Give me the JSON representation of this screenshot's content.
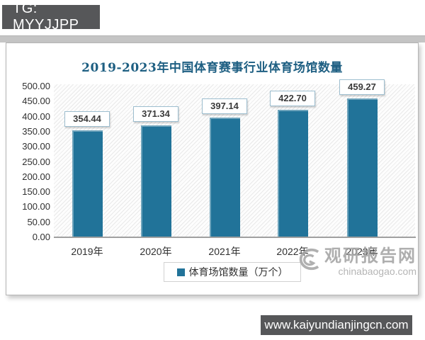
{
  "overlay": {
    "tg_label": "TG: MYYJJPP",
    "url_label": "www.kaiyundianjingcn.com"
  },
  "watermark": {
    "name": "观研报告网",
    "site": "chinabaogao.com"
  },
  "chart_data": {
    "type": "bar",
    "title": "2019-2023年中国体育赛事行业体育场馆数量",
    "categories": [
      "2019年",
      "2020年",
      "2021年",
      "2022年",
      "2023年"
    ],
    "values": [
      354.44,
      371.34,
      397.14,
      422.7,
      459.27
    ],
    "value_labels": [
      "354.44",
      "371.34",
      "397.14",
      "422.70",
      "459.27"
    ],
    "series_name": "体育场馆数量（万个）",
    "legend_position": "bottom",
    "xlabel": "",
    "ylabel": "",
    "ylim": [
      0,
      500
    ],
    "ytick_step": 50,
    "ytick_labels": [
      "0.00",
      "50.00",
      "100.00",
      "150.00",
      "200.00",
      "250.00",
      "300.00",
      "350.00",
      "400.00",
      "450.00",
      "500.00"
    ],
    "grid": false,
    "colors": {
      "bar": "#217399",
      "title": "#1E5F82",
      "label_box_border": "#9DBECF",
      "axis_text": "#2F2F2F"
    }
  }
}
